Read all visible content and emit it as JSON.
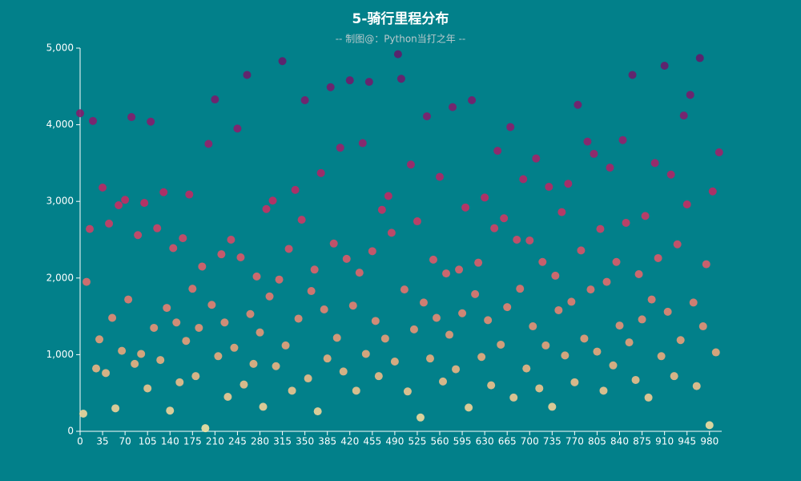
{
  "chart_data": {
    "type": "scatter",
    "title": "5-骑行里程分布",
    "subtitle": "-- 制图@：Python当打之年 --",
    "x": [
      0,
      5,
      10,
      15,
      20,
      25,
      30,
      35,
      40,
      45,
      50,
      55,
      60,
      65,
      70,
      75,
      80,
      85,
      90,
      95,
      100,
      105,
      110,
      115,
      120,
      125,
      130,
      135,
      140,
      145,
      150,
      155,
      160,
      165,
      170,
      175,
      180,
      185,
      190,
      195,
      200,
      205,
      210,
      215,
      220,
      225,
      230,
      235,
      240,
      245,
      250,
      255,
      260,
      265,
      270,
      275,
      280,
      285,
      290,
      295,
      300,
      305,
      310,
      315,
      320,
      325,
      330,
      335,
      340,
      345,
      350,
      355,
      360,
      365,
      370,
      375,
      380,
      385,
      390,
      395,
      400,
      405,
      410,
      415,
      420,
      425,
      430,
      435,
      440,
      445,
      450,
      455,
      460,
      465,
      470,
      475,
      480,
      485,
      490,
      495,
      500,
      505,
      510,
      515,
      520,
      525,
      530,
      535,
      540,
      545,
      550,
      555,
      560,
      565,
      570,
      575,
      580,
      585,
      590,
      595,
      600,
      605,
      610,
      615,
      620,
      625,
      630,
      635,
      640,
      645,
      650,
      655,
      660,
      665,
      670,
      675,
      680,
      685,
      690,
      695,
      700,
      705,
      710,
      715,
      720,
      725,
      730,
      735,
      740,
      745,
      750,
      755,
      760,
      765,
      770,
      775,
      780,
      785,
      790,
      795,
      800,
      805,
      810,
      815,
      820,
      825,
      830,
      835,
      840,
      845,
      850,
      855,
      860,
      865,
      870,
      875,
      880,
      885,
      890,
      895,
      900,
      905,
      910,
      915,
      920,
      925,
      930,
      935,
      940,
      945,
      950,
      955,
      960,
      965,
      970,
      975,
      980,
      985,
      990,
      995
    ],
    "values": [
      4150,
      230,
      1950,
      2640,
      4050,
      820,
      1200,
      3180,
      760,
      2710,
      1480,
      300,
      2950,
      1050,
      3020,
      1720,
      4100,
      880,
      2560,
      1010,
      2980,
      560,
      4040,
      1350,
      2650,
      930,
      3120,
      1610,
      270,
      2390,
      1420,
      640,
      2520,
      1180,
      3090,
      1860,
      720,
      1350,
      2150,
      40,
      3750,
      1650,
      4330,
      980,
      2310,
      1420,
      450,
      2500,
      1090,
      3950,
      2270,
      610,
      4650,
      1530,
      880,
      2020,
      1290,
      320,
      2900,
      1760,
      3010,
      850,
      1980,
      4830,
      1120,
      2380,
      530,
      3150,
      1470,
      2760,
      4320,
      690,
      1830,
      2110,
      260,
      3370,
      1590,
      950,
      4490,
      2450,
      1220,
      3700,
      780,
      2250,
      4580,
      1640,
      530,
      2070,
      3760,
      1010,
      4560,
      2350,
      1440,
      720,
      2890,
      1210,
      3070,
      2590,
      910,
      4920,
      4600,
      1850,
      520,
      3480,
      1330,
      2740,
      180,
      1680,
      4110,
      950,
      2240,
      1480,
      3320,
      650,
      2060,
      1260,
      4230,
      810,
      2110,
      1540,
      2920,
      310,
      4320,
      1790,
      2200,
      970,
      3050,
      1450,
      600,
      2650,
      3660,
      1130,
      2780,
      1620,
      3970,
      440,
      2500,
      1860,
      3290,
      820,
      2490,
      1370,
      3560,
      560,
      2210,
      1120,
      3190,
      320,
      2030,
      1580,
      2860,
      990,
      3230,
      1690,
      640,
      4260,
      2360,
      1210,
      3780,
      1850,
      3620,
      1040,
      2640,
      530,
      1950,
      3440,
      860,
      2210,
      1380,
      3800,
      2720,
      1160,
      4650,
      670,
      2050,
      1460,
      2810,
      440,
      1720,
      3500,
      2260,
      980,
      4770,
      1560,
      3350,
      720,
      2440,
      1190,
      4120,
      2960,
      4390,
      1680,
      590,
      4870,
      1370,
      2180,
      80,
      3130,
      1030,
      3640
    ],
    "xlim": [
      0,
      999
    ],
    "xticks": [
      0,
      35,
      70,
      105,
      140,
      175,
      210,
      245,
      280,
      315,
      350,
      385,
      420,
      455,
      490,
      525,
      560,
      595,
      630,
      665,
      700,
      735,
      770,
      805,
      840,
      875,
      910,
      945,
      980
    ],
    "ylim": [
      0,
      5000
    ],
    "yticks": [
      0,
      {
        "value": 1000,
        "label": "1,000"
      },
      {
        "value": 2000,
        "label": "2,000"
      },
      {
        "value": 3000,
        "label": "3,000"
      },
      {
        "value": 4000,
        "label": "4,000"
      },
      {
        "value": 5000,
        "label": "5,000"
      }
    ],
    "grid": false,
    "visual_map": {
      "min": 0,
      "max": 5000,
      "colors": [
        "#f3e3a4",
        "#e9a97b",
        "#e2686a",
        "#c42a62",
        "#871d6d",
        "#5e1b69"
      ]
    }
  }
}
